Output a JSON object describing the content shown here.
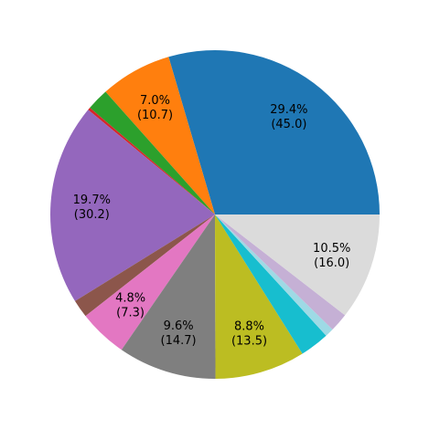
{
  "chart_data": {
    "type": "pie",
    "title": "",
    "start_angle_deg": 0,
    "direction": "counterclockwise",
    "slices": [
      {
        "value": 45.0,
        "percent_label": "29.4%",
        "value_label": "(45.0)",
        "color": "#1f77b4"
      },
      {
        "value": 10.7,
        "percent_label": "7.0%",
        "value_label": "(10.7)",
        "color": "#ff7f0e"
      },
      {
        "value": 3.3,
        "percent_label": "",
        "value_label": "",
        "color": "#2ca02c"
      },
      {
        "value": 0.4,
        "percent_label": "",
        "value_label": "",
        "color": "#d62728"
      },
      {
        "value": 30.2,
        "percent_label": "19.7%",
        "value_label": "(30.2)",
        "color": "#9467bd"
      },
      {
        "value": 2.7,
        "percent_label": "",
        "value_label": "",
        "color": "#8c564b"
      },
      {
        "value": 7.3,
        "percent_label": "4.8%",
        "value_label": "(7.3)",
        "color": "#e377c2"
      },
      {
        "value": 14.7,
        "percent_label": "9.6%",
        "value_label": "(14.7)",
        "color": "#7f7f7f"
      },
      {
        "value": 13.5,
        "percent_label": "8.8%",
        "value_label": "(13.5)",
        "color": "#bcbd22"
      },
      {
        "value": 4.4,
        "percent_label": "",
        "value_label": "",
        "color": "#17becf"
      },
      {
        "value": 1.3,
        "percent_label": "",
        "value_label": "",
        "color": "#9edae5"
      },
      {
        "value": 2.8,
        "percent_label": "",
        "value_label": "",
        "color": "#c5b0d5"
      },
      {
        "value": 16.0,
        "percent_label": "10.5%",
        "value_label": "(16.0)",
        "color": "#dbdbdb"
      }
    ]
  }
}
